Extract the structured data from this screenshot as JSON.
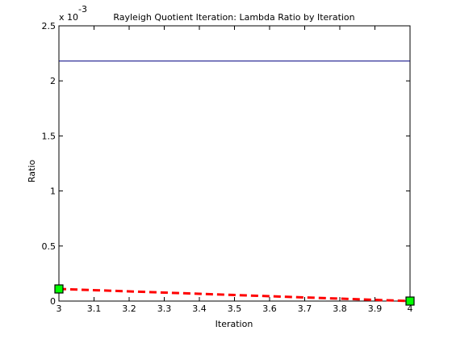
{
  "chart_data": {
    "type": "line",
    "title": "Rayleigh Quotient Iteration: Lambda Ratio by Iteration",
    "xlabel": "Iteration",
    "ylabel": "Ratio",
    "y_multiplier": "x 10",
    "y_multiplier_exponent": "-3",
    "xlim": [
      3,
      4
    ],
    "ylim": [
      0,
      0.0025
    ],
    "x_ticks": [
      3,
      3.1,
      3.2,
      3.3,
      3.4,
      3.5,
      3.6,
      3.7,
      3.8,
      3.9,
      4
    ],
    "x_tick_labels": [
      "3",
      "3.1",
      "3.2",
      "3.3",
      "3.4",
      "3.5",
      "3.6",
      "3.7",
      "3.8",
      "3.9",
      "4"
    ],
    "y_ticks": [
      0,
      0.0005,
      0.001,
      0.0015,
      0.002,
      0.0025
    ],
    "y_tick_labels": [
      "0",
      "0.5",
      "1",
      "1.5",
      "2",
      "2.5"
    ],
    "grid": false,
    "series": [
      {
        "x": [
          3,
          4
        ],
        "values": [
          0.00218,
          0.00218
        ],
        "color": "#000080",
        "style": "solid"
      },
      {
        "x": [
          3,
          4
        ],
        "values": [
          0.00011,
          0.0
        ],
        "color": "#ff0000",
        "style": "dashed",
        "marker": "square",
        "marker_fill": "#00ff00"
      }
    ]
  }
}
